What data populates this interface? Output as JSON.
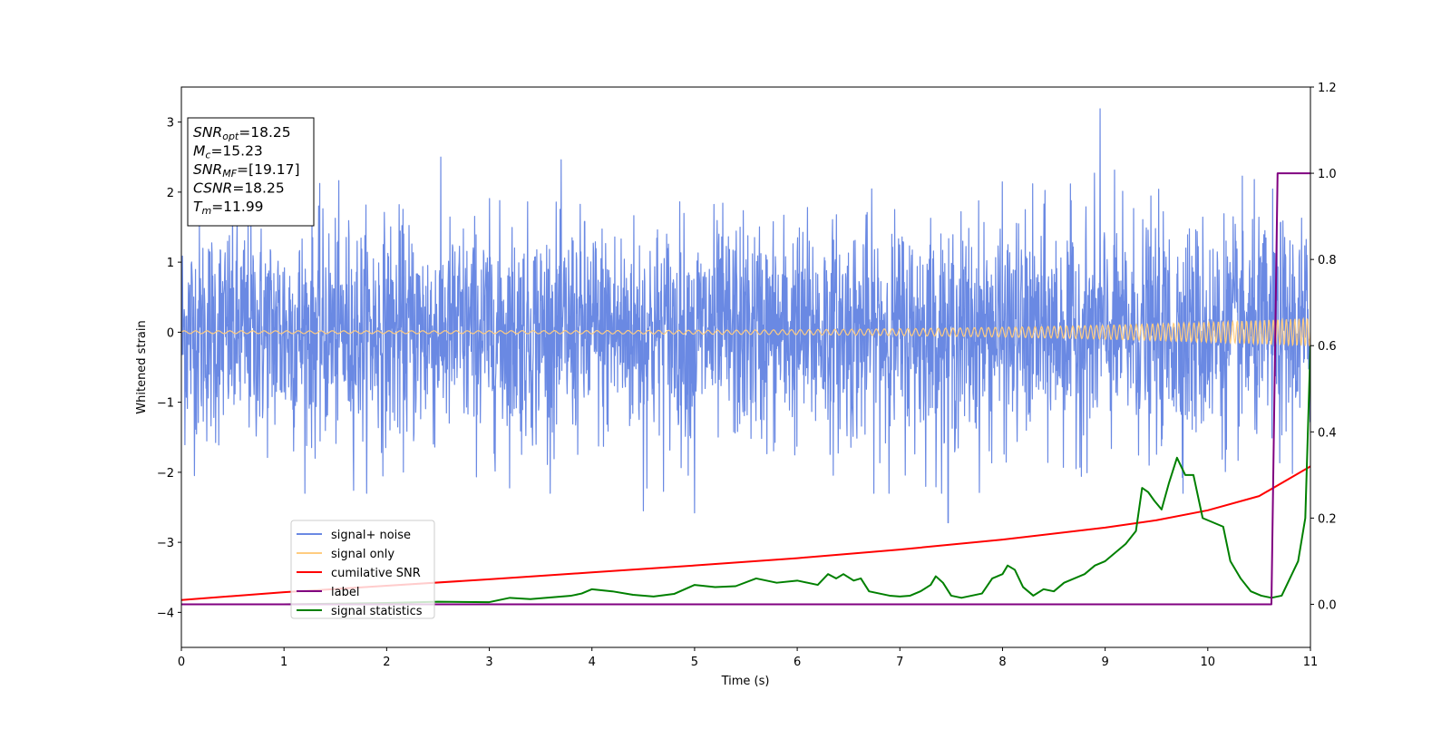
{
  "chart_data": {
    "type": "line",
    "xlabel": "Time (s)",
    "ylabel": "Whitened strain",
    "xlim": [
      0,
      11
    ],
    "ylim_left": [
      -4.5,
      3.5
    ],
    "ylim_right": [
      -0.1,
      1.2
    ],
    "x_ticks": [
      "0",
      "1",
      "2",
      "3",
      "4",
      "5",
      "6",
      "7",
      "8",
      "9",
      "10",
      "11"
    ],
    "y_left_ticks": [
      "−4",
      "−3",
      "−2",
      "−1",
      "0",
      "1",
      "2",
      "3"
    ],
    "y_right_ticks": [
      "0.0",
      "0.2",
      "0.4",
      "0.6",
      "0.8",
      "1.0",
      "1.2"
    ],
    "info_box": [
      {
        "base": "SNR",
        "sub": "opt",
        "value": "=18.25"
      },
      {
        "base": "M",
        "sub": "c",
        "value": "=15.23"
      },
      {
        "base": "SNR",
        "sub": "MF",
        "value": "=[19.17]"
      },
      {
        "base": "CSNR",
        "sub": "",
        "value": "=18.25"
      },
      {
        "base": "T",
        "sub": "m",
        "value": "=11.99"
      }
    ],
    "legend": {
      "placement": "lower left",
      "entries": [
        {
          "label": "signal+ noise",
          "color": "#6a89e3"
        },
        {
          "label": "signal only",
          "color": "#ffcc80"
        },
        {
          "label": "cumilative SNR",
          "color": "#ff0000"
        },
        {
          "label": "label",
          "color": "#800080"
        },
        {
          "label": "signal statistics",
          "color": "#008000"
        }
      ]
    },
    "series": [
      {
        "name": "signal+ noise",
        "axis": "left",
        "color": "#6a89e3",
        "description_range": [
          -2.6,
          3.2
        ],
        "peaks": [
          {
            "x": 8.95,
            "y": 3.19
          },
          {
            "x": 4.5,
            "y": -2.55
          },
          {
            "x": 5.0,
            "y": -2.58
          },
          {
            "x": 7.47,
            "y": -2.72
          }
        ]
      },
      {
        "name": "signal only",
        "axis": "left",
        "color": "#ffcc80",
        "amplitude_start": 0.02,
        "amplitude_end": 0.2
      },
      {
        "name": "cumilative SNR",
        "axis": "right",
        "color": "#ff0000",
        "x": [
          0,
          1,
          2,
          3,
          4,
          5,
          6,
          7,
          8,
          9,
          9.5,
          10,
          10.5,
          11
        ],
        "y": [
          0.01,
          0.028,
          0.043,
          0.058,
          0.074,
          0.09,
          0.107,
          0.127,
          0.15,
          0.178,
          0.195,
          0.218,
          0.251,
          0.32
        ]
      },
      {
        "name": "label",
        "axis": "right",
        "color": "#800080",
        "x": [
          0,
          10.62,
          10.68,
          11
        ],
        "y": [
          0,
          0,
          1,
          1
        ]
      },
      {
        "name": "signal statistics",
        "axis": "right",
        "color": "#008000",
        "x": [
          0,
          1,
          2,
          2.5,
          3,
          3.2,
          3.4,
          3.6,
          3.8,
          3.9,
          4.0,
          4.2,
          4.4,
          4.6,
          4.8,
          5.0,
          5.2,
          5.4,
          5.6,
          5.8,
          6.0,
          6.2,
          6.3,
          6.38,
          6.45,
          6.55,
          6.62,
          6.7,
          6.8,
          6.9,
          7.0,
          7.1,
          7.2,
          7.3,
          7.35,
          7.42,
          7.5,
          7.6,
          7.7,
          7.8,
          7.9,
          8.0,
          8.05,
          8.12,
          8.2,
          8.3,
          8.4,
          8.5,
          8.6,
          8.7,
          8.8,
          8.9,
          9.0,
          9.1,
          9.2,
          9.3,
          9.36,
          9.42,
          9.48,
          9.55,
          9.62,
          9.7,
          9.78,
          9.86,
          9.95,
          10.05,
          10.15,
          10.22,
          10.32,
          10.42,
          10.52,
          10.62,
          10.72,
          10.8,
          10.88,
          10.95,
          11.0
        ],
        "y": [
          0.0,
          0.0,
          0.003,
          0.006,
          0.005,
          0.015,
          0.012,
          0.016,
          0.02,
          0.025,
          0.035,
          0.03,
          0.022,
          0.018,
          0.024,
          0.045,
          0.04,
          0.042,
          0.06,
          0.05,
          0.055,
          0.045,
          0.07,
          0.06,
          0.07,
          0.055,
          0.06,
          0.03,
          0.025,
          0.02,
          0.018,
          0.02,
          0.03,
          0.045,
          0.065,
          0.05,
          0.02,
          0.015,
          0.02,
          0.025,
          0.06,
          0.07,
          0.09,
          0.08,
          0.04,
          0.02,
          0.035,
          0.03,
          0.05,
          0.06,
          0.07,
          0.09,
          0.1,
          0.12,
          0.14,
          0.17,
          0.27,
          0.26,
          0.24,
          0.22,
          0.28,
          0.34,
          0.3,
          0.3,
          0.2,
          0.19,
          0.18,
          0.1,
          0.06,
          0.03,
          0.02,
          0.015,
          0.02,
          0.06,
          0.1,
          0.2,
          0.6
        ]
      }
    ]
  }
}
